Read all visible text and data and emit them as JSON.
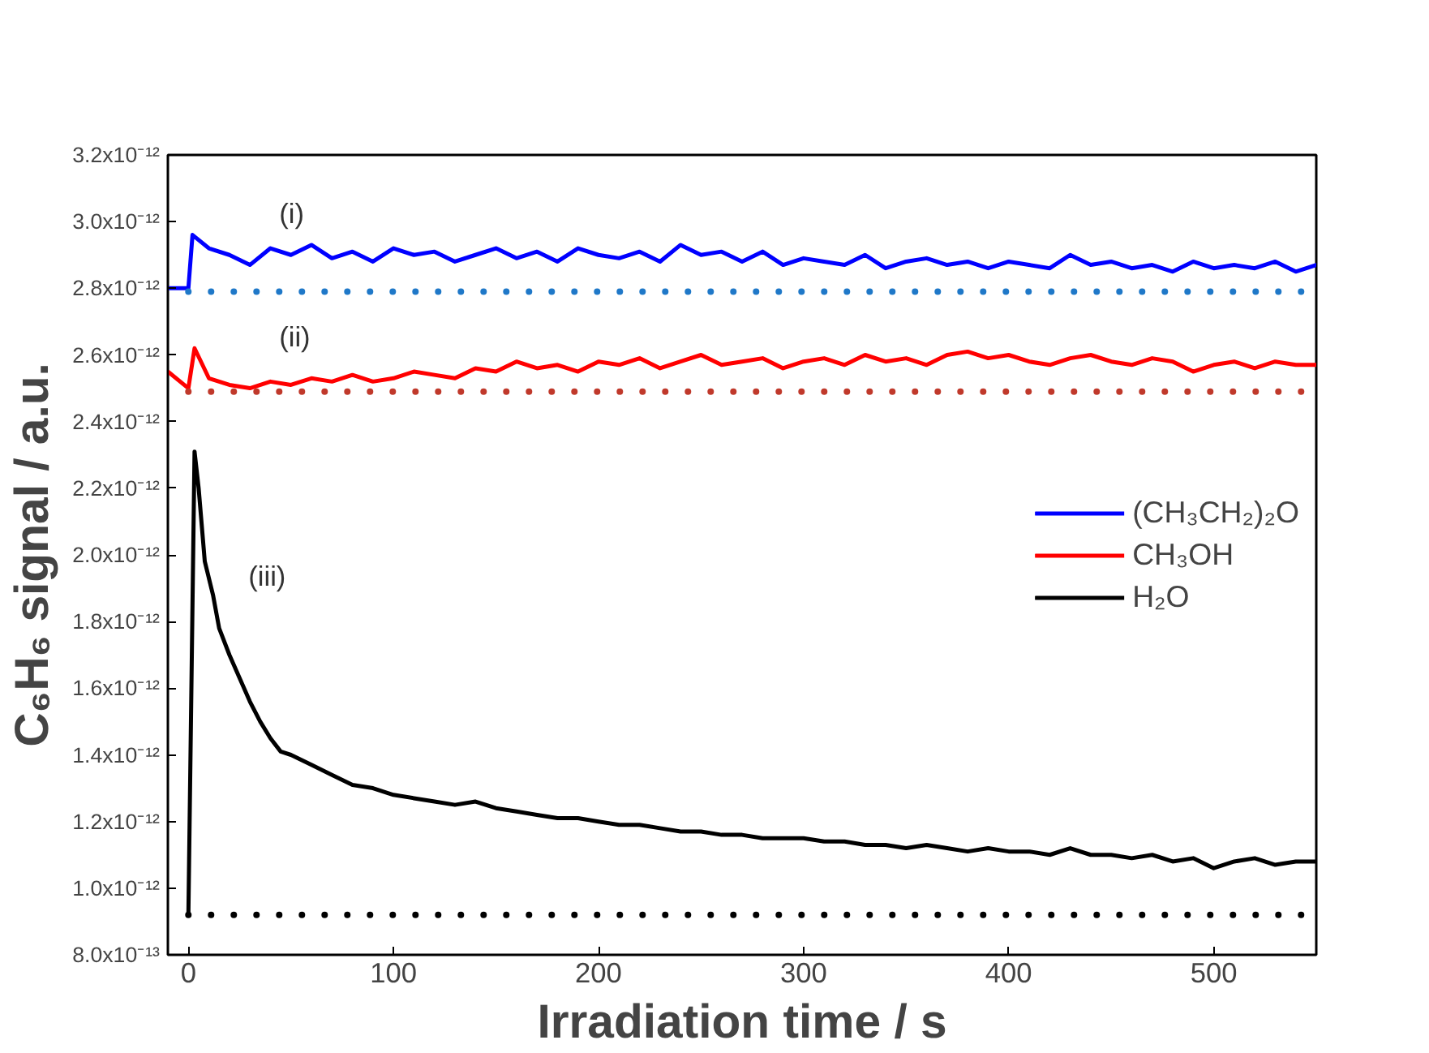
{
  "chart_data": {
    "type": "line",
    "xlabel": "Irradiation time / s",
    "ylabel": "C₆H₆ signal / a.u.",
    "xlim": [
      -10,
      550
    ],
    "xticks": [
      0,
      100,
      200,
      300,
      400,
      500
    ],
    "ylim": [
      8e-13,
      3.2e-12
    ],
    "yticks": [
      {
        "value": 8e-13,
        "label": "8.0x10⁻¹³"
      },
      {
        "value": 1e-12,
        "label": "1.0x10⁻¹²"
      },
      {
        "value": 1.2e-12,
        "label": "1.2x10⁻¹²"
      },
      {
        "value": 1.4e-12,
        "label": "1.4x10⁻¹²"
      },
      {
        "value": 1.6e-12,
        "label": "1.6x10⁻¹²"
      },
      {
        "value": 1.8e-12,
        "label": "1.8x10⁻¹²"
      },
      {
        "value": 2e-12,
        "label": "2.0x10⁻¹²"
      },
      {
        "value": 2.2e-12,
        "label": "2.2x10⁻¹²"
      },
      {
        "value": 2.4e-12,
        "label": "2.4x10⁻¹²"
      },
      {
        "value": 2.6e-12,
        "label": "2.6x10⁻¹²"
      },
      {
        "value": 2.8e-12,
        "label": "2.8x10⁻¹²"
      },
      {
        "value": 3e-12,
        "label": "3.0x10⁻¹²"
      },
      {
        "value": 3.2e-12,
        "label": "3.2x10⁻¹²"
      }
    ],
    "grid": false,
    "legend": "right",
    "line_style": "solid",
    "marker": "none",
    "annotations": [
      "(i)",
      "(ii)",
      "(iii)"
    ],
    "series": [
      {
        "name": "(CH₃CH₂)₂O",
        "color": "#0000ff",
        "x": [
          -10,
          0,
          2,
          10,
          20,
          30,
          40,
          50,
          60,
          70,
          80,
          90,
          100,
          110,
          120,
          130,
          140,
          150,
          160,
          170,
          180,
          190,
          200,
          210,
          220,
          230,
          240,
          250,
          260,
          270,
          280,
          290,
          300,
          310,
          320,
          330,
          340,
          350,
          360,
          370,
          380,
          390,
          400,
          410,
          420,
          430,
          440,
          450,
          460,
          470,
          480,
          490,
          500,
          510,
          520,
          530,
          540,
          550
        ],
        "values": [
          2.8e-12,
          2.8e-12,
          2.96e-12,
          2.92e-12,
          2.9e-12,
          2.87e-12,
          2.92e-12,
          2.9e-12,
          2.93e-12,
          2.89e-12,
          2.91e-12,
          2.88e-12,
          2.92e-12,
          2.9e-12,
          2.91e-12,
          2.88e-12,
          2.9e-12,
          2.92e-12,
          2.89e-12,
          2.91e-12,
          2.88e-12,
          2.92e-12,
          2.9e-12,
          2.89e-12,
          2.91e-12,
          2.88e-12,
          2.93e-12,
          2.9e-12,
          2.91e-12,
          2.88e-12,
          2.91e-12,
          2.87e-12,
          2.89e-12,
          2.88e-12,
          2.87e-12,
          2.9e-12,
          2.86e-12,
          2.88e-12,
          2.89e-12,
          2.87e-12,
          2.88e-12,
          2.86e-12,
          2.88e-12,
          2.87e-12,
          2.86e-12,
          2.9e-12,
          2.87e-12,
          2.88e-12,
          2.86e-12,
          2.87e-12,
          2.85e-12,
          2.88e-12,
          2.86e-12,
          2.87e-12,
          2.86e-12,
          2.88e-12,
          2.85e-12,
          2.87e-12
        ]
      },
      {
        "name": "CH₃OH",
        "color": "#ff0000",
        "x": [
          -10,
          0,
          3,
          10,
          20,
          30,
          40,
          50,
          60,
          70,
          80,
          90,
          100,
          110,
          120,
          130,
          140,
          150,
          160,
          170,
          180,
          190,
          200,
          210,
          220,
          230,
          240,
          250,
          260,
          270,
          280,
          290,
          300,
          310,
          320,
          330,
          340,
          350,
          360,
          370,
          380,
          390,
          400,
          410,
          420,
          430,
          440,
          450,
          460,
          470,
          480,
          490,
          500,
          510,
          520,
          530,
          540,
          550
        ],
        "values": [
          2.55e-12,
          2.5e-12,
          2.62e-12,
          2.53e-12,
          2.51e-12,
          2.5e-12,
          2.52e-12,
          2.51e-12,
          2.53e-12,
          2.52e-12,
          2.54e-12,
          2.52e-12,
          2.53e-12,
          2.55e-12,
          2.54e-12,
          2.53e-12,
          2.56e-12,
          2.55e-12,
          2.58e-12,
          2.56e-12,
          2.57e-12,
          2.55e-12,
          2.58e-12,
          2.57e-12,
          2.59e-12,
          2.56e-12,
          2.58e-12,
          2.6e-12,
          2.57e-12,
          2.58e-12,
          2.59e-12,
          2.56e-12,
          2.58e-12,
          2.59e-12,
          2.57e-12,
          2.6e-12,
          2.58e-12,
          2.59e-12,
          2.57e-12,
          2.6e-12,
          2.61e-12,
          2.59e-12,
          2.6e-12,
          2.58e-12,
          2.57e-12,
          2.59e-12,
          2.6e-12,
          2.58e-12,
          2.57e-12,
          2.59e-12,
          2.58e-12,
          2.55e-12,
          2.57e-12,
          2.58e-12,
          2.56e-12,
          2.58e-12,
          2.57e-12,
          2.57e-12
        ]
      },
      {
        "name": "H₂O",
        "color": "#000000",
        "x": [
          0,
          3,
          5,
          8,
          12,
          15,
          20,
          25,
          30,
          35,
          40,
          45,
          50,
          60,
          70,
          80,
          90,
          100,
          110,
          120,
          130,
          140,
          150,
          160,
          170,
          180,
          190,
          200,
          210,
          220,
          230,
          240,
          250,
          260,
          270,
          280,
          290,
          300,
          310,
          320,
          330,
          340,
          350,
          360,
          370,
          380,
          390,
          400,
          410,
          420,
          430,
          440,
          450,
          460,
          470,
          480,
          490,
          500,
          510,
          520,
          530,
          540,
          550
        ],
        "values": [
          9.2e-13,
          2.31e-12,
          2.2e-12,
          1.98e-12,
          1.88e-12,
          1.78e-12,
          1.7e-12,
          1.63e-12,
          1.56e-12,
          1.5e-12,
          1.45e-12,
          1.41e-12,
          1.4e-12,
          1.37e-12,
          1.34e-12,
          1.31e-12,
          1.3e-12,
          1.28e-12,
          1.27e-12,
          1.26e-12,
          1.25e-12,
          1.26e-12,
          1.24e-12,
          1.23e-12,
          1.22e-12,
          1.21e-12,
          1.21e-12,
          1.2e-12,
          1.19e-12,
          1.19e-12,
          1.18e-12,
          1.17e-12,
          1.17e-12,
          1.16e-12,
          1.16e-12,
          1.15e-12,
          1.15e-12,
          1.15e-12,
          1.14e-12,
          1.14e-12,
          1.13e-12,
          1.13e-12,
          1.12e-12,
          1.13e-12,
          1.12e-12,
          1.11e-12,
          1.12e-12,
          1.11e-12,
          1.11e-12,
          1.1e-12,
          1.12e-12,
          1.1e-12,
          1.1e-12,
          1.09e-12,
          1.1e-12,
          1.08e-12,
          1.09e-12,
          1.06e-12,
          1.08e-12,
          1.09e-12,
          1.07e-12,
          1.08e-12,
          1.08e-12
        ]
      },
      {
        "color": "#1f78c8",
        "line_style": "dotted",
        "x": [
          0,
          550
        ],
        "values": [
          2.79e-12,
          2.79e-12
        ]
      },
      {
        "color": "#c0392b",
        "line_style": "dotted",
        "x": [
          0,
          550
        ],
        "values": [
          2.49e-12,
          2.49e-12
        ]
      },
      {
        "color": "#000000",
        "line_style": "dotted",
        "x": [
          0,
          550
        ],
        "values": [
          9.2e-13,
          9.2e-13
        ]
      }
    ]
  }
}
